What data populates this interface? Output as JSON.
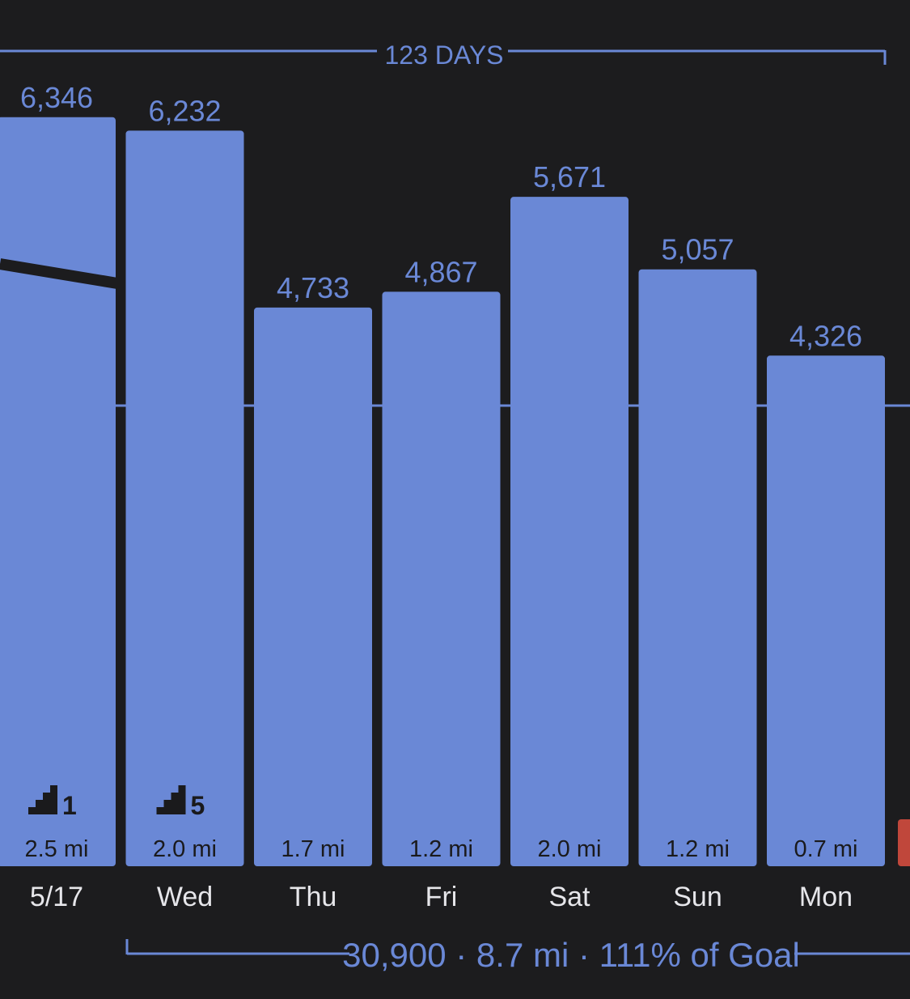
{
  "colors": {
    "background": "#1c1c1e",
    "bar": "#6a88d6",
    "bar_text": "#1a1a1c",
    "label": "#e6e6ea",
    "accent": "#6a88d6",
    "partial_bar": "#c0473b",
    "trend_line": "#1c1c1e"
  },
  "chart_data": {
    "type": "bar",
    "categories": [
      "5/17",
      "Wed",
      "Thu",
      "Fri",
      "Sat",
      "Sun",
      "Mon"
    ],
    "values": [
      6346,
      6232,
      4733,
      4867,
      5671,
      5057,
      4326
    ],
    "value_labels": [
      "6,346",
      "6,232",
      "4,733",
      "4,867",
      "5,671",
      "5,057",
      "4,326"
    ],
    "distances": [
      "2.5 mi",
      "2.0 mi",
      "1.7 mi",
      "1.2 mi",
      "2.0 mi",
      "1.2 mi",
      "0.7 mi"
    ],
    "floors": [
      1,
      5,
      null,
      null,
      null,
      null,
      null
    ],
    "floor_icon": "stairs-icon",
    "goal_line_value": 3900,
    "trend_line": {
      "from": 6346,
      "to": 6232
    },
    "partial_next_bar": {
      "color": "#c0473b"
    },
    "top_bracket_label": "123 DAYS",
    "bottom_summary": "30,900 · 8.7 mi · 111% of Goal",
    "ylim": [
      0,
      7000
    ]
  }
}
